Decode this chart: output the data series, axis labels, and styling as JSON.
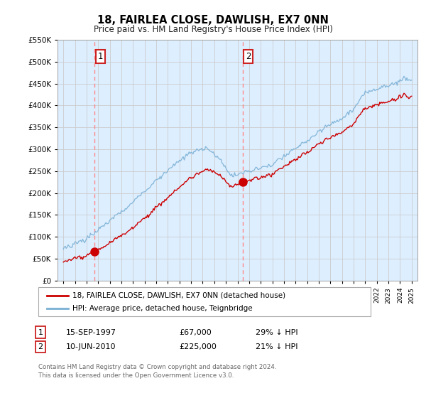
{
  "title": "18, FAIRLEA CLOSE, DAWLISH, EX7 0NN",
  "subtitle": "Price paid vs. HM Land Registry's House Price Index (HPI)",
  "legend_line1": "18, FAIRLEA CLOSE, DAWLISH, EX7 0NN (detached house)",
  "legend_line2": "HPI: Average price, detached house, Teignbridge",
  "transaction1_date": "15-SEP-1997",
  "transaction1_price": "£67,000",
  "transaction1_hpi": "29% ↓ HPI",
  "transaction1_year": 1997.71,
  "transaction1_value": 67000,
  "transaction2_date": "10-JUN-2010",
  "transaction2_price": "£225,000",
  "transaction2_hpi": "21% ↓ HPI",
  "transaction2_year": 2010.44,
  "transaction2_value": 225000,
  "footer": "Contains HM Land Registry data © Crown copyright and database right 2024.\nThis data is licensed under the Open Government Licence v3.0.",
  "ylim": [
    0,
    550000
  ],
  "xlim": [
    1994.5,
    2025.5
  ],
  "price_color": "#cc0000",
  "hpi_color": "#7ab0d4",
  "grid_color": "#cccccc",
  "vline_color": "#ff8888",
  "bg_left_color": "#ddeeff",
  "bg_right_color": "#ffffff"
}
